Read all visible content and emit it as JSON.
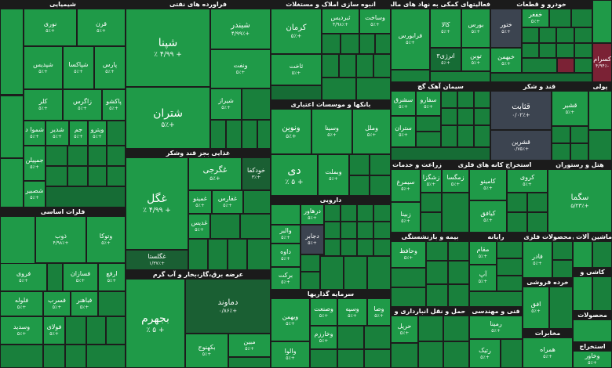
{
  "sectors": [
    {
      "id": "chemical",
      "title": "شیمیایی"
    },
    {
      "id": "refinery",
      "title": "فراورده های نفتی"
    },
    {
      "id": "construction",
      "title": "انبوه سازی املاک و مستغلات"
    },
    {
      "id": "activities",
      "title": "فعالیتهای کمکی به نهاد های مالی"
    },
    {
      "id": "auto",
      "title": "خودرو و قطعات"
    },
    {
      "id": "cement",
      "title": "سیمان آهک گچ"
    },
    {
      "id": "banks",
      "title": "بانکها و موسسات اعتباری"
    },
    {
      "id": "sugar",
      "title": "قند و شکر"
    },
    {
      "id": "food",
      "title": "غذایی بجز قند وشکر"
    },
    {
      "id": "agri",
      "title": "زراعت و خدمات وابسته"
    },
    {
      "id": "nonmetal",
      "title": "استخراج کانه های فلزی"
    },
    {
      "id": "hotel",
      "title": "هتل و رستوران"
    },
    {
      "id": "basemetals",
      "title": "فلزات اساسی"
    },
    {
      "id": "pharma",
      "title": "دارویی"
    },
    {
      "id": "insurance",
      "title": "بیمه و بازنشستگی"
    },
    {
      "id": "computer",
      "title": "رایانه"
    },
    {
      "id": "metalprod",
      "title": "محصولات فلزی"
    },
    {
      "id": "utility",
      "title": "عرضه برق،گاز،بخار و آب گرم"
    },
    {
      "id": "investment",
      "title": "سرمایه گذاریها"
    },
    {
      "id": "transport",
      "title": "حمل و نقل انبارداری و"
    },
    {
      "id": "technical",
      "title": "فنی و مهندسی"
    },
    {
      "id": "retail",
      "title": "خرده فروشی"
    },
    {
      "id": "telecom",
      "title": "مخابرات"
    },
    {
      "id": "machinery",
      "title": "ماشین آلات و"
    },
    {
      "id": "kashi",
      "title": "کاشی و"
    },
    {
      "id": "chemprod",
      "title": "لاستیک و پلاستیک"
    },
    {
      "id": "other1",
      "title": "استخراج"
    },
    {
      "id": "dairy",
      "title": "محصولات"
    },
    {
      "id": "paper",
      "title": "پولی"
    }
  ],
  "tiles": {
    "noori": {
      "name": "نوری",
      "pct": "+۵٪"
    },
    "qharan": {
      "name": "قرن",
      "pct": "+۵٪"
    },
    "shesadis": {
      "name": "شپدیس",
      "pct": "+۵٪"
    },
    "shapaksa": {
      "name": "شپاکسا",
      "pct": "+۵٪"
    },
    "pars": {
      "name": "پارس",
      "pct": "+۵٪"
    },
    "kala": {
      "name": "کلر",
      "pct": "+۵٪"
    },
    "zagros": {
      "name": "زاگرس",
      "pct": "+۵٪"
    },
    "pakhsho": {
      "name": "پاکشو",
      "pct": "+۵٪"
    },
    "shamvad": {
      "name": "شموا د",
      "pct": "+۵٪"
    },
    "shdeyr": {
      "name": "شدیر",
      "pct": "+۵٪"
    },
    "jam": {
      "name": "جم",
      "pct": "+۵٪"
    },
    "vibro": {
      "name": "ویترو",
      "pct": "+۵٪"
    },
    "jamian": {
      "name": "جمپیلن",
      "pct": "+۵٪"
    },
    "shesbir": {
      "name": "شصبیر",
      "pct": "+۵٪"
    },
    "shepna": {
      "name": "شپنا",
      "pct": "+ ۴/۹۹ ٪"
    },
    "shebandr": {
      "name": "شبندر",
      "pct": "+۴/۹۹٪"
    },
    "vanaft": {
      "name": "ونفت",
      "pct": "+۵٪"
    },
    "shetran": {
      "name": "شتران",
      "pct": "+۵٪"
    },
    "shiraz": {
      "name": "شیراز",
      "pct": "+۵٪"
    },
    "kerman": {
      "name": "کرمان",
      "pct": "+۵٪"
    },
    "tibrdis": {
      "name": "ثبردیس",
      "pct": "+۴/۹۸٪"
    },
    "vasakht": {
      "name": "وساخت",
      "pct": "+۵٪"
    },
    "takhsat": {
      "name": "ثاخت",
      "pct": "+۵٪"
    },
    "farabourse": {
      "name": "فرابورس",
      "pct": "+۵٪"
    },
    "kala2": {
      "name": "کالا",
      "pct": "+۵٪"
    },
    "bourse": {
      "name": "بورس",
      "pct": "+۵٪"
    },
    "afzar": {
      "name": "انرژی۳",
      "pct": "+۵٪"
    },
    "tavan": {
      "name": "توبن",
      "pct": "+۵٪"
    },
    "khavar": {
      "name": "ختور",
      "pct": "+۵٪"
    },
    "khefaz": {
      "name": "خفغر",
      "pct": "+۵٪"
    },
    "khbehman": {
      "name": "خبهمن",
      "pct": "+۵٪"
    },
    "kesram": {
      "name": "کسرام",
      "pct": "-۴/۹۴٪"
    },
    "sefaro": {
      "name": "سفارو",
      "pct": "+۵٪"
    },
    "sshargh": {
      "name": "سشرق",
      "pct": "+۵٪"
    },
    "sfars": {
      "name": "ستران",
      "pct": "+۵٪"
    },
    "qelpeh": {
      "name": "قثابت",
      "pct": "+۰/۰۲٪"
    },
    "qshir": {
      "name": "قشیر",
      "pct": "+۵٪"
    },
    "qshahr": {
      "name": "قشرین",
      "pct": "+۰/۷۵٪"
    },
    "vanvin": {
      "name": "ونوین",
      "pct": "+۵٪"
    },
    "vsina": {
      "name": "وسینا",
      "pct": "+۵٪"
    },
    "vmal": {
      "name": "وملل",
      "pct": "+۵٪"
    },
    "di": {
      "name": "دی",
      "pct": "+ ۵ ٪"
    },
    "vebmelat": {
      "name": "وبملت",
      "pct": "+۵٪"
    },
    "ghgol": {
      "name": "غگل",
      "pct": "+ ۴/۹۹ ٪"
    },
    "ghgorji": {
      "name": "غگرجی",
      "pct": "+۵٪"
    },
    "khodka": {
      "name": "خودکفا",
      "pct": "+۳٪"
    },
    "ghabino": {
      "name": "غمینو",
      "pct": "+۵٪"
    },
    "gharfs": {
      "name": "غفارس",
      "pct": "+۵٪"
    },
    "ghadis": {
      "name": "غدیس",
      "pct": "+۵٪"
    },
    "ghglsta": {
      "name": "غگلستا",
      "pct": "+۱/۳۷٪"
    },
    "zagofor": {
      "name": "زشگزا",
      "pct": "+۵٪"
    },
    "zemgsa": {
      "name": "زمگسا",
      "pct": "+۵٪"
    },
    "simorgh": {
      "name": "سیمرغ",
      "pct": "+۵٪"
    },
    "zibna": {
      "name": "زبینا",
      "pct": "+۵٪"
    },
    "kemaraj": {
      "name": "کامینو",
      "pct": "+۵٪"
    },
    "kgol": {
      "name": "کروی",
      "pct": "+۵٪"
    },
    "kaghaf": {
      "name": "کیافق",
      "pct": "+۵٪"
    },
    "sagma": {
      "name": "سگما",
      "pct": "+۵/۲۳٪"
    },
    "zob": {
      "name": "ذوب",
      "pct": "+۴/۹۸٪"
    },
    "vtoka": {
      "name": "وتوکا",
      "pct": "+۵٪"
    },
    "foroo": {
      "name": "فروی",
      "pct": "+۵٪"
    },
    "fasazan": {
      "name": "فسازان",
      "pct": "+۵٪"
    },
    "arfa": {
      "name": "ارفع",
      "pct": "+۵٪"
    },
    "folaz": {
      "name": "فلوله",
      "pct": "+۵٪"
    },
    "fsorb": {
      "name": "فسرب",
      "pct": "+۵٪"
    },
    "fnaver": {
      "name": "فباهنر",
      "pct": "+۵٪"
    },
    "fsandis": {
      "name": "وسدید",
      "pct": "+۵٪"
    },
    "folvil": {
      "name": "فولای",
      "pct": "+۵٪"
    },
    "darzko": {
      "name": "درهاور",
      "pct": "+۵٪"
    },
    "valbr": {
      "name": "والبر",
      "pct": "+۵٪"
    },
    "dejabir": {
      "name": "دجابر",
      "pct": "+۵٪"
    },
    "daroo": {
      "name": "داوه",
      "pct": "+۵٪"
    },
    "baraket": {
      "name": "برکت",
      "pct": "+۵٪"
    },
    "vbimeh": {
      "name": "وبیمه",
      "pct": "+۵٪"
    },
    "vhafaz": {
      "name": "وحافظ",
      "pct": "+۵٪"
    },
    "maqam": {
      "name": "مقام",
      "pct": "+۵٪"
    },
    "ap": {
      "name": "آپ",
      "pct": "+۵٪"
    },
    "qadir": {
      "name": "فادر",
      "pct": "+۵٪"
    },
    "afagh": {
      "name": "افق",
      "pct": "+۵٪"
    },
    "bahram": {
      "name": "بجهرم",
      "pct": "+ ۵ ٪"
    },
    "damavand": {
      "name": "دماوند",
      "pct": "+۰/۸۶٪"
    },
    "bkahnooj": {
      "name": "بکهنوج",
      "pct": "+۵٪"
    },
    "mobin": {
      "name": "مبین",
      "pct": "+۵٪"
    },
    "vbahman": {
      "name": "وبهمن",
      "pct": "+۵٪"
    },
    "vsanat": {
      "name": "وصنعت",
      "pct": "+۵٪"
    },
    "vsapa": {
      "name": "وسپه",
      "pct": "+۵٪"
    },
    "vtosa": {
      "name": "وصا",
      "pct": "+۵٪"
    },
    "valna": {
      "name": "والوا",
      "pct": "+۵٪"
    },
    "vkhrazm": {
      "name": "وخارزم",
      "pct": "+۵٪"
    },
    "hrbil": {
      "name": "حریل",
      "pct": "+۵٪"
    },
    "remina": {
      "name": "رمینا",
      "pct": "+۵٪"
    },
    "vinik": {
      "name": "رتیک",
      "pct": "+۵٪"
    },
    "hamrah": {
      "name": "همراه",
      "pct": "+۵٪"
    },
    "vkhaf": {
      "name": "وخاور",
      "pct": "+۵٪"
    }
  }
}
